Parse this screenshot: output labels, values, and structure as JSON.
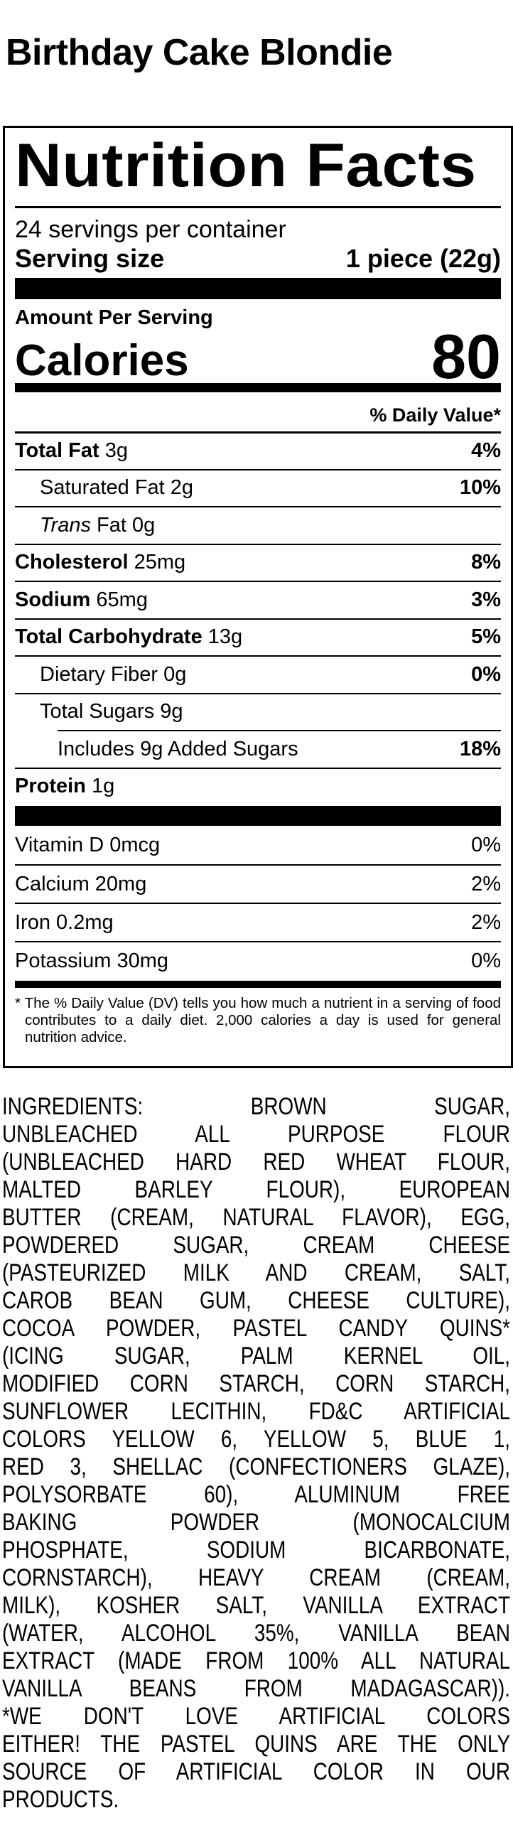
{
  "product_title": "Birthday Cake Blondie",
  "label": {
    "heading": "Nutrition Facts",
    "servings_per_container": "24 servings per container",
    "serving_size_label": "Serving size",
    "serving_size_value": "1 piece (22g)",
    "amount_per_serving": "Amount Per Serving",
    "calories_label": "Calories",
    "calories_value": "80",
    "daily_value_header": "% Daily Value*",
    "nutrients": [
      {
        "name": "Total Fat",
        "amount": "3g",
        "dv": "4%"
      },
      {
        "name": "Saturated Fat",
        "amount": "2g",
        "dv": "10%"
      },
      {
        "name_italic": "Trans",
        "name": "Fat",
        "amount": "0g",
        "dv": ""
      },
      {
        "name": "Cholesterol",
        "amount": "25mg",
        "dv": "8%"
      },
      {
        "name": "Sodium",
        "amount": "65mg",
        "dv": "3%"
      },
      {
        "name": "Total Carbohydrate",
        "amount": "13g",
        "dv": "5%"
      },
      {
        "name": "Dietary Fiber",
        "amount": "0g",
        "dv": "0%"
      },
      {
        "name": "Total Sugars",
        "amount": "9g",
        "dv": ""
      },
      {
        "name": "Includes 9g Added Sugars",
        "amount": "",
        "dv": "18%"
      },
      {
        "name": "Protein",
        "amount": "1g",
        "dv": ""
      }
    ],
    "vitamins": [
      {
        "name": "Vitamin D 0mcg",
        "dv": "0%"
      },
      {
        "name": "Calcium 20mg",
        "dv": "2%"
      },
      {
        "name": "Iron 0.2mg",
        "dv": "2%"
      },
      {
        "name": "Potassium 30mg",
        "dv": "0%"
      }
    ],
    "footnote": "* The % Daily Value (DV) tells you how much a nutrient in a serving of food contributes to a daily diet. 2,000 calories a day is used for general nutrition advice."
  },
  "ingredients_lines": [
    "INGREDIENTS: BROWN SUGAR,",
    "UNBLEACHED ALL PURPOSE FLOUR",
    "(UNBLEACHED HARD RED WHEAT FLOUR,",
    "MALTED BARLEY FLOUR), EUROPEAN",
    "BUTTER (CREAM, NATURAL FLAVOR), EGG,",
    "POWDERED SUGAR, CREAM CHEESE",
    "(PASTEURIZED MILK AND CREAM, SALT,",
    "CAROB BEAN GUM, CHEESE CULTURE),",
    "COCOA POWDER, PASTEL CANDY QUINS*",
    "(ICING SUGAR, PALM KERNEL OIL,",
    "MODIFIED CORN STARCH, CORN STARCH,",
    "SUNFLOWER LECITHIN, FD&C ARTIFICIAL",
    "COLORS YELLOW 6, YELLOW 5, BLUE 1,",
    "RED 3, SHELLAC (CONFECTIONERS GLAZE),",
    "POLYSORBATE 60), ALUMINUM FREE",
    "BAKING POWDER (MONOCALCIUM",
    "PHOSPHATE, SODIUM BICARBONATE,",
    "CORNSTARCH), HEAVY CREAM (CREAM,",
    "MILK), KOSHER SALT, VANILLA EXTRACT",
    "(WATER, ALCOHOL 35%, VANILLA BEAN",
    "EXTRACT (MADE FROM 100% ALL NATURAL",
    "VANILLA BEANS FROM MADAGASCAR)).",
    "*WE DON'T LOVE ARTIFICIAL COLORS",
    "EITHER! THE PASTEL QUINS ARE THE ONLY",
    "SOURCE OF ARTIFICIAL COLOR IN OUR",
    "PRODUCTS."
  ]
}
